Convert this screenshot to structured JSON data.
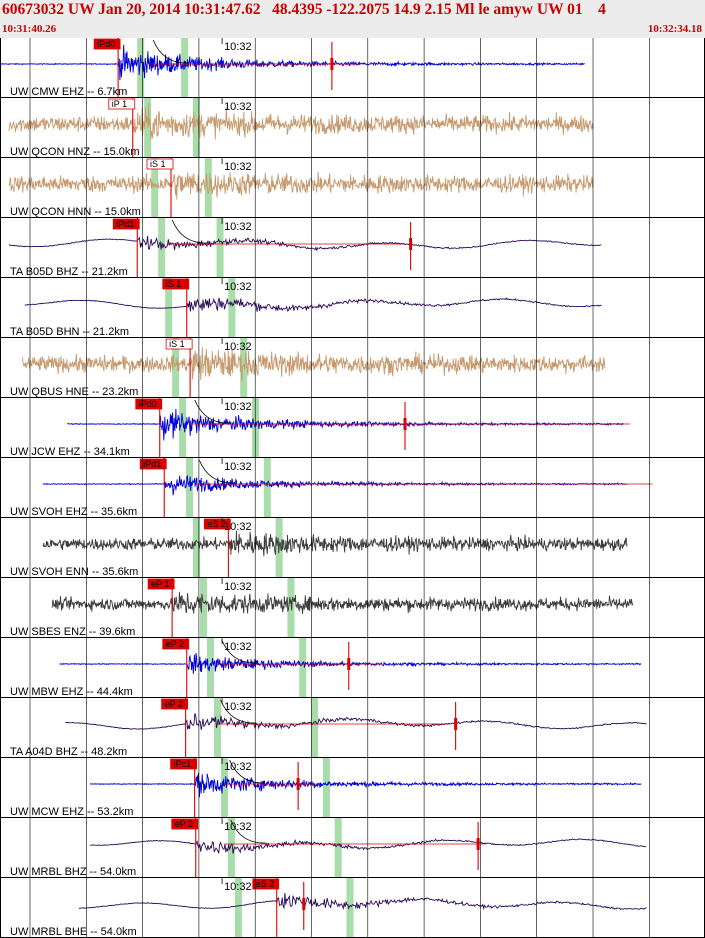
{
  "header": {
    "title": "60673032 UW Jan 20, 2014 10:31:47.62   48.4395 -122.2075 14.9 2.15 Ml le amyw UW 01    4",
    "start_time": "10:31:40.26",
    "end_time": "10:32:34.18"
  },
  "colors": {
    "header_bg": "#ececec",
    "header_text": "#cc0000",
    "pick_red": "#dd0000",
    "window_green": "#a8dca8",
    "blue": "#0000dd",
    "tan": "#c69a6e",
    "purple": "#2a0a5a",
    "gray": "#3c3c3c",
    "grid": "#000000"
  },
  "chart_data": {
    "type": "seismogram",
    "time_axis": {
      "start": "10:31:40.26",
      "end": "10:32:34.18",
      "tick_label": "10:32"
    },
    "traces": [
      {
        "station": "UW CMW EHZ -- 6.7km",
        "color": "blue",
        "pick": "iPd0",
        "pick_boxed": true,
        "pick_time": 10.5,
        "amp": 0.9,
        "data_start": 0,
        "data_end": 52,
        "coda_start": 17,
        "coda_end": 32,
        "marker_time": 29.5
      },
      {
        "station": "UW QCON HNZ -- 15.0km",
        "color": "tan",
        "pick": "iP 1",
        "pick_boxed": false,
        "pick_time": 11.8,
        "amp": 0.55,
        "data_start": 0.8,
        "data_end": 52.8
      },
      {
        "station": "UW QCON HNN -- 15.0km",
        "color": "tan",
        "pick": "iS 1",
        "pick_boxed": false,
        "pick_time": 15.2,
        "amp": 0.4,
        "data_start": 0.8,
        "data_end": 52.8
      },
      {
        "station": "TA B05D BHZ -- 21.2km",
        "color": "purple",
        "pick": "iPd1",
        "pick_boxed": true,
        "pick_time": 12.2,
        "amp": 0.5,
        "data_start": 0.8,
        "data_end": 53.5,
        "coda_start": 19,
        "coda_end": 36,
        "marker_time": 36.5
      },
      {
        "station": "TA B05D BHN -- 21.2km",
        "color": "purple",
        "pick": "iS 1",
        "pick_boxed": true,
        "pick_time": 16.6,
        "amp": 0.65,
        "data_start": 2.2,
        "data_end": 53.5
      },
      {
        "station": "UW QBUS HNE -- 23.2km",
        "color": "tan",
        "pick": "iS 1",
        "pick_boxed": false,
        "pick_time": 16.9,
        "amp": 0.55,
        "data_start": 2.0,
        "data_end": 53.8
      },
      {
        "station": "UW JCW EHZ -- 34.1km",
        "color": "blue",
        "pick": "iPd0",
        "pick_boxed": true,
        "pick_time": 14.2,
        "amp": 0.85,
        "data_start": 6,
        "data_end": 55.5,
        "coda_start": 21,
        "coda_end": 56,
        "marker_time": 36
      },
      {
        "station": "UW SVOH EHZ -- 35.6km",
        "color": "blue",
        "pick": "iPd1",
        "pick_boxed": true,
        "pick_time": 14.6,
        "amp": 0.6,
        "data_start": 3.8,
        "data_end": 55.8,
        "coda_start": 22,
        "coda_end": 58
      },
      {
        "station": "UW SVOH ENN -- 35.6km",
        "color": "gray",
        "pick": "eS 2",
        "pick_boxed": true,
        "pick_time": 20.3,
        "amp": 0.45,
        "data_start": 3.8,
        "data_end": 55.8
      },
      {
        "station": "UW SBES ENZ -- 39.6km",
        "color": "gray",
        "pick": "eP 1",
        "pick_boxed": true,
        "pick_time": 15.3,
        "amp": 0.45,
        "data_start": 4.6,
        "data_end": 56.3
      },
      {
        "station": "UW MBW EHZ -- 44.4km",
        "color": "blue",
        "pick": "eP 2",
        "pick_boxed": true,
        "pick_time": 16.6,
        "amp": 0.55,
        "data_start": 5.3,
        "data_end": 57,
        "coda_start": 24,
        "coda_end": 34,
        "marker_time": 31
      },
      {
        "station": "TA A04D BHZ -- 48.2km",
        "color": "purple",
        "pick": "eP 2",
        "pick_boxed": true,
        "pick_time": 16.5,
        "amp": 0.55,
        "data_start": 5.8,
        "data_end": 57.5,
        "coda_start": 19,
        "coda_end": 40,
        "marker_time": 40.5
      },
      {
        "station": "UW MCW EHZ -- 53.2km",
        "color": "blue",
        "pick": "iPc1",
        "pick_boxed": true,
        "pick_time": 17.3,
        "amp": 0.65,
        "data_start": 8,
        "data_end": 57,
        "coda_start": 24,
        "coda_end": 28,
        "marker_time": 26.5
      },
      {
        "station": "UW MRBL BHZ -- 54.0km",
        "color": "purple",
        "pick": "eP 2",
        "pick_boxed": true,
        "pick_time": 17.4,
        "amp": 0.5,
        "data_start": 8,
        "data_end": 57.5,
        "coda_start": 25,
        "coda_end": 43,
        "marker_time": 42.5
      },
      {
        "station": "UW MRBL BHE -- 54.0km",
        "color": "purple",
        "pick": "eS 2",
        "pick_boxed": true,
        "pick_time": 24.6,
        "amp": 0.6,
        "data_start": 7,
        "data_end": 57.5,
        "marker_time": 27
      }
    ]
  }
}
